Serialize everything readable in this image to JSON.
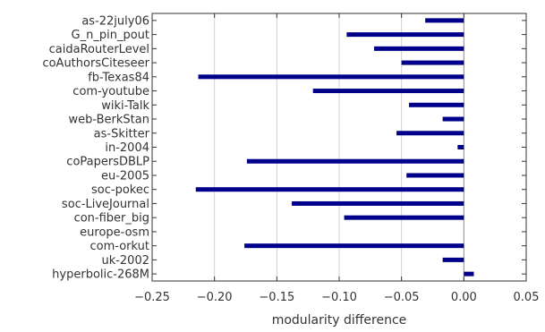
{
  "chart_data": {
    "type": "bar",
    "orientation": "horizontal",
    "categories": [
      "as-22july06",
      "G_n_pin_pout",
      "caidaRouterLevel",
      "coAuthorsCiteseer",
      "fb-Texas84",
      "com-youtube",
      "wiki-Talk",
      "web-BerkStan",
      "as-Skitter",
      "in-2004",
      "coPapersDBLP",
      "eu-2005",
      "soc-pokec",
      "soc-LiveJournal",
      "con-fiber_big",
      "europe-osm",
      "com-orkut",
      "uk-2002",
      "hyperbolic-268M"
    ],
    "values": [
      -0.031,
      -0.094,
      -0.072,
      -0.05,
      -0.213,
      -0.121,
      -0.044,
      -0.017,
      -0.054,
      -0.005,
      -0.174,
      -0.046,
      -0.215,
      -0.138,
      -0.096,
      0.0,
      -0.176,
      -0.017,
      0.008
    ],
    "xlabel": "modularity difference",
    "ylabel": "",
    "xlim": [
      -0.25,
      0.05
    ],
    "xticks": [
      -0.25,
      -0.2,
      -0.15,
      -0.1,
      -0.05,
      0.0,
      0.05
    ],
    "xtick_labels": [
      "−0.25",
      "−0.20",
      "−0.15",
      "−0.10",
      "−0.05",
      "0.00",
      "0.05"
    ],
    "grid": "vertical",
    "bar_color": "#00008b",
    "zero_line_color": "#8c8c8c"
  }
}
